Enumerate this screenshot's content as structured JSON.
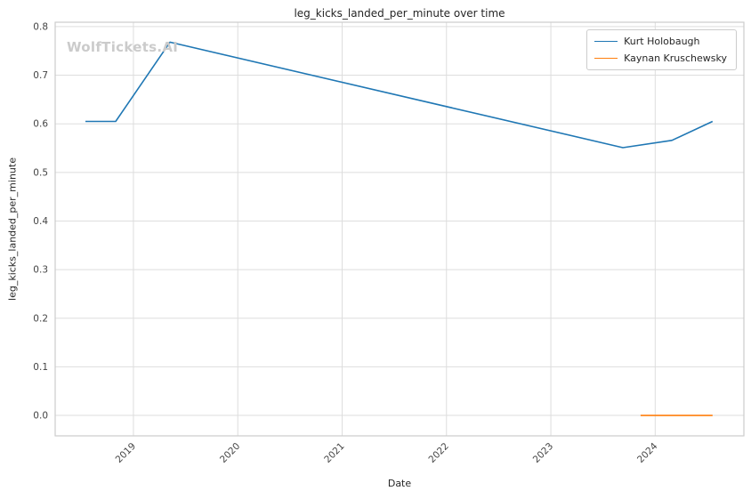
{
  "watermark": {
    "text": "WolfTickets.AI"
  },
  "chart_data": {
    "type": "line",
    "title": "leg_kicks_landed_per_minute over time",
    "xlabel": "Date",
    "ylabel": "leg_kicks_landed_per_minute",
    "x_ticks": [
      2019,
      2020,
      2021,
      2022,
      2023,
      2024
    ],
    "y_ticks": [
      0.0,
      0.1,
      0.2,
      0.3,
      0.4,
      0.5,
      0.6,
      0.7,
      0.8
    ],
    "x_range": [
      2018.25,
      2024.85
    ],
    "y_range": [
      -0.042,
      0.809
    ],
    "grid": true,
    "legend_position": "upper right",
    "series": [
      {
        "name": "Kurt Holobaugh",
        "color": "#1f77b4",
        "x": [
          2018.54,
          2018.83,
          2019.35,
          2023.69,
          2024.16,
          2024.55
        ],
        "y": [
          0.605,
          0.605,
          0.768,
          0.551,
          0.566,
          0.605
        ]
      },
      {
        "name": "Kaynan Kruschewsky",
        "color": "#ff7f0e",
        "x": [
          2023.86,
          2024.55
        ],
        "y": [
          0.0,
          0.0
        ]
      }
    ]
  }
}
